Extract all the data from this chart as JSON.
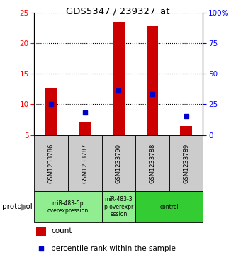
{
  "title": "GDS5347 / 239327_at",
  "samples": [
    "GSM1233786",
    "GSM1233787",
    "GSM1233790",
    "GSM1233788",
    "GSM1233789"
  ],
  "count_values": [
    12.7,
    7.2,
    23.5,
    22.8,
    6.5
  ],
  "count_base": [
    5.0,
    5.0,
    5.0,
    5.0,
    5.0
  ],
  "percentile_values": [
    10.0,
    8.7,
    12.3,
    11.7,
    8.1
  ],
  "ylim_left": [
    5,
    25
  ],
  "ylim_right": [
    0,
    100
  ],
  "yticks_left": [
    5,
    10,
    15,
    20,
    25
  ],
  "yticks_right": [
    0,
    25,
    50,
    75,
    100
  ],
  "bar_color": "#cc0000",
  "dot_color": "#0000cc",
  "protocol_groups": [
    {
      "label": "miR-483-5p\noverexpression",
      "indices": [
        0,
        1
      ],
      "color": "#90EE90"
    },
    {
      "label": "miR-483-3\np overexpr\nession",
      "indices": [
        2
      ],
      "color": "#90EE90"
    },
    {
      "label": "control",
      "indices": [
        3,
        4
      ],
      "color": "#33cc33"
    }
  ],
  "protocol_label": "protocol",
  "legend_count_label": "count",
  "legend_percentile_label": "percentile rank within the sample",
  "bar_width": 0.35,
  "background_sample": "#cccccc"
}
